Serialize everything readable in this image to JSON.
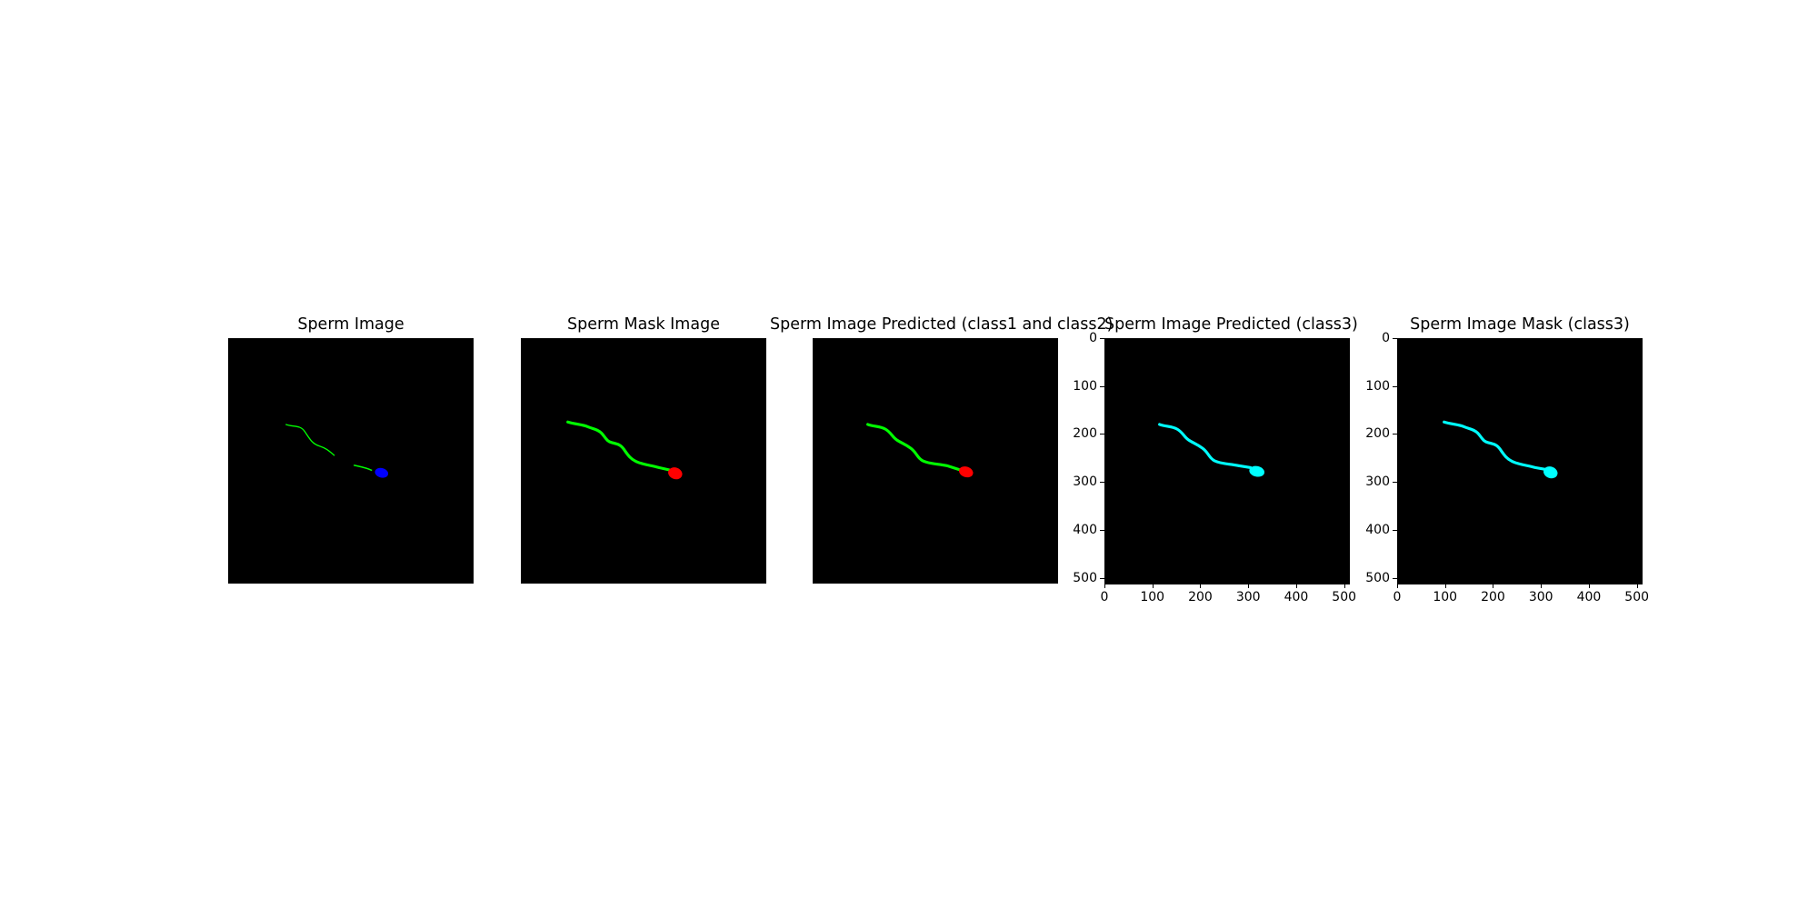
{
  "figure": {
    "panels": [
      {
        "id": "p1",
        "title": "Sperm Image",
        "axes": false,
        "variant": "original"
      },
      {
        "id": "p2",
        "title": "Sperm Mask Image",
        "axes": false,
        "variant": "mask"
      },
      {
        "id": "p3",
        "title": "Sperm Image Predicted (class1 and class2)",
        "axes": false,
        "variant": "predicted"
      },
      {
        "id": "p4",
        "title": "Sperm Image Predicted (class3)",
        "axes": true,
        "variant": "class3-pred"
      },
      {
        "id": "p5",
        "title": "Sperm Image Mask (class3)",
        "axes": true,
        "variant": "class3-mask"
      }
    ],
    "x_ticks": [
      "0",
      "100",
      "200",
      "300",
      "400",
      "500"
    ],
    "y_ticks": [
      "0",
      "100",
      "200",
      "300",
      "400",
      "500"
    ],
    "colors": {
      "background": "#000000",
      "tail": "#00ff00",
      "head_original": "#0000ff",
      "head_mask": "#ff0000",
      "class3": "#00ffff"
    }
  }
}
